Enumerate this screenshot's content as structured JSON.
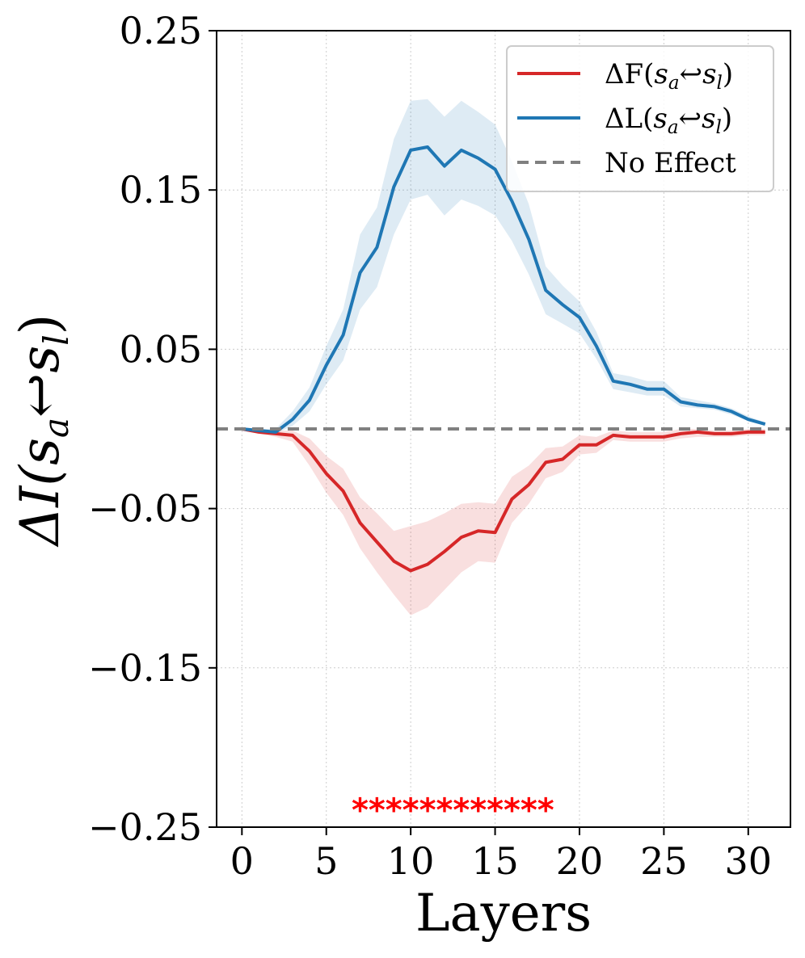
{
  "chart_data": {
    "type": "line",
    "xlabel": "Layers",
    "ylabel": "ΔI(sa↩sl)",
    "ylabel_parts": {
      "delta_i": "ΔI(",
      "s": "s",
      "a": "a",
      "arrow": "↩",
      "s2": "s",
      "l": "l",
      "close": ")"
    },
    "xlim": [
      -1.5,
      32.5
    ],
    "ylim": [
      -0.25,
      0.25
    ],
    "xticks": [
      0,
      5,
      10,
      15,
      20,
      25,
      30
    ],
    "yticks": [
      0.25,
      0.15,
      0.05,
      -0.05,
      -0.15,
      -0.25
    ],
    "ytick_labels": [
      "0.25",
      "0.15",
      "0.05",
      "−0.05",
      "−0.15",
      "−0.25"
    ],
    "grid": true,
    "legend_position": "top-right",
    "x": [
      0,
      1,
      2,
      3,
      4,
      5,
      6,
      7,
      8,
      9,
      10,
      11,
      12,
      13,
      14,
      15,
      16,
      17,
      18,
      19,
      20,
      21,
      22,
      23,
      24,
      25,
      26,
      27,
      28,
      29,
      30,
      31
    ],
    "series": [
      {
        "name": "ΔF(sa↩sl)",
        "legend_parts": {
          "pre": "ΔF(",
          "s": "s",
          "a": "a",
          "arrow": "↩",
          "s2": "s",
          "l": "l",
          "close": ")"
        },
        "color": "#d62728",
        "values": [
          0.0,
          -0.002,
          -0.003,
          -0.004,
          -0.014,
          -0.028,
          -0.039,
          -0.059,
          -0.071,
          -0.083,
          -0.089,
          -0.085,
          -0.077,
          -0.068,
          -0.064,
          -0.065,
          -0.044,
          -0.035,
          -0.021,
          -0.019,
          -0.01,
          -0.01,
          -0.004,
          -0.005,
          -0.005,
          -0.005,
          -0.003,
          -0.002,
          -0.003,
          -0.003,
          -0.002,
          -0.002
        ],
        "lower": [
          0.0,
          -0.003,
          -0.005,
          -0.008,
          -0.023,
          -0.04,
          -0.054,
          -0.075,
          -0.09,
          -0.104,
          -0.117,
          -0.112,
          -0.101,
          -0.09,
          -0.083,
          -0.084,
          -0.059,
          -0.047,
          -0.031,
          -0.027,
          -0.016,
          -0.015,
          -0.007,
          -0.008,
          -0.008,
          -0.008,
          -0.006,
          -0.005,
          -0.005,
          -0.005,
          -0.004,
          -0.004
        ],
        "upper": [
          0.0,
          -0.001,
          -0.001,
          -0.001,
          -0.006,
          -0.017,
          -0.025,
          -0.043,
          -0.053,
          -0.064,
          -0.061,
          -0.058,
          -0.053,
          -0.047,
          -0.046,
          -0.047,
          -0.03,
          -0.023,
          -0.012,
          -0.011,
          -0.004,
          -0.005,
          -0.001,
          -0.002,
          -0.002,
          -0.002,
          0.0,
          0.0,
          -0.001,
          -0.001,
          0.0,
          0.0
        ]
      },
      {
        "name": "ΔL(sa↩sl)",
        "legend_parts": {
          "pre": "ΔL(",
          "s": "s",
          "a": "a",
          "arrow": "↩",
          "s2": "s",
          "l": "l",
          "close": ")"
        },
        "color": "#1f77b4",
        "values": [
          0.0,
          -0.001,
          -0.002,
          0.006,
          0.018,
          0.04,
          0.059,
          0.098,
          0.114,
          0.152,
          0.175,
          0.177,
          0.165,
          0.175,
          0.17,
          0.163,
          0.143,
          0.119,
          0.087,
          0.078,
          0.07,
          0.052,
          0.03,
          0.028,
          0.025,
          0.025,
          0.017,
          0.015,
          0.014,
          0.011,
          0.006,
          0.003
        ],
        "lower": [
          0.0,
          -0.001,
          -0.003,
          0.002,
          0.011,
          0.028,
          0.043,
          0.075,
          0.089,
          0.122,
          0.144,
          0.147,
          0.134,
          0.144,
          0.14,
          0.134,
          0.118,
          0.097,
          0.072,
          0.066,
          0.06,
          0.044,
          0.025,
          0.023,
          0.021,
          0.021,
          0.014,
          0.013,
          0.012,
          0.009,
          0.005,
          0.002
        ],
        "upper": [
          0.0,
          0.0,
          0.0,
          0.011,
          0.026,
          0.052,
          0.075,
          0.122,
          0.139,
          0.182,
          0.206,
          0.207,
          0.196,
          0.206,
          0.199,
          0.191,
          0.168,
          0.141,
          0.102,
          0.09,
          0.08,
          0.061,
          0.035,
          0.033,
          0.03,
          0.03,
          0.02,
          0.018,
          0.016,
          0.013,
          0.008,
          0.004
        ]
      }
    ],
    "reference_line": {
      "name": "No Effect",
      "y": 0,
      "color": "#808080",
      "style": "dashed"
    },
    "significance_markers": {
      "symbol": "*",
      "color": "#ff0000",
      "y": -0.233,
      "x": [
        7,
        8,
        9,
        10,
        11,
        12,
        13,
        14,
        15,
        16,
        17,
        18
      ]
    }
  }
}
